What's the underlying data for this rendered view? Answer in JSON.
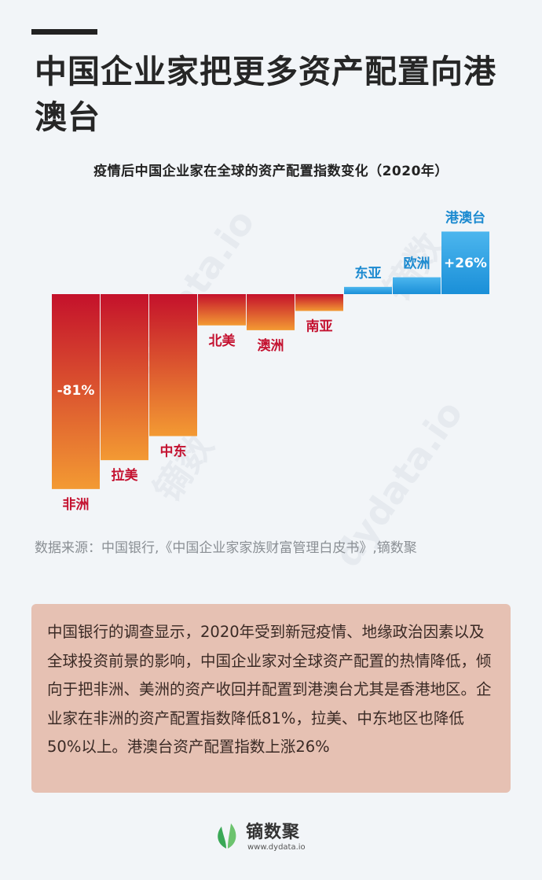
{
  "header": {
    "title": "中国企业家把更多资产配置向港澳台"
  },
  "chart_data": {
    "type": "bar",
    "title": "疫情后中国企业家在全球的资产配置指数变化（2020年）",
    "unit": "%",
    "categories": [
      "非洲",
      "拉美",
      "中东",
      "北美",
      "澳洲",
      "南亚",
      "东亚",
      "欧洲",
      "港澳台"
    ],
    "values": [
      -81,
      -69,
      -59,
      -13,
      -15,
      -7,
      3,
      7,
      26
    ],
    "data_labels": [
      {
        "category": "非洲",
        "text": "-81%"
      },
      {
        "category": "港澳台",
        "text": "+26%"
      }
    ],
    "colors": {
      "negative_top": "#c4112b",
      "negative_bottom": "#f39a33",
      "positive_top": "#4cb6ee",
      "positive_bottom": "#1a8fd8",
      "negative_label": "#c41230",
      "positive_label": "#1c8ad0"
    }
  },
  "watermarks": [
    "dydata.io",
    "镝数",
    "dydata.io",
    "镝数"
  ],
  "source": "数据来源：中国银行,《中国企业家家族财富管理白皮书》,镝数聚",
  "note": "中国银行的调查显示，2020年受到新冠疫情、地缘政治因素以及全球投资前景的影响，中国企业家对全球资产配置的热情降低，倾向于把非洲、美洲的资产收回并配置到港澳台尤其是香港地区。企业家在非洲的资产配置指数降低81%，拉美、中东地区也降低50%以上。港澳台资产配置指数上涨26%",
  "footer": {
    "brand": "镝数聚",
    "url": "www.dydata.io"
  }
}
